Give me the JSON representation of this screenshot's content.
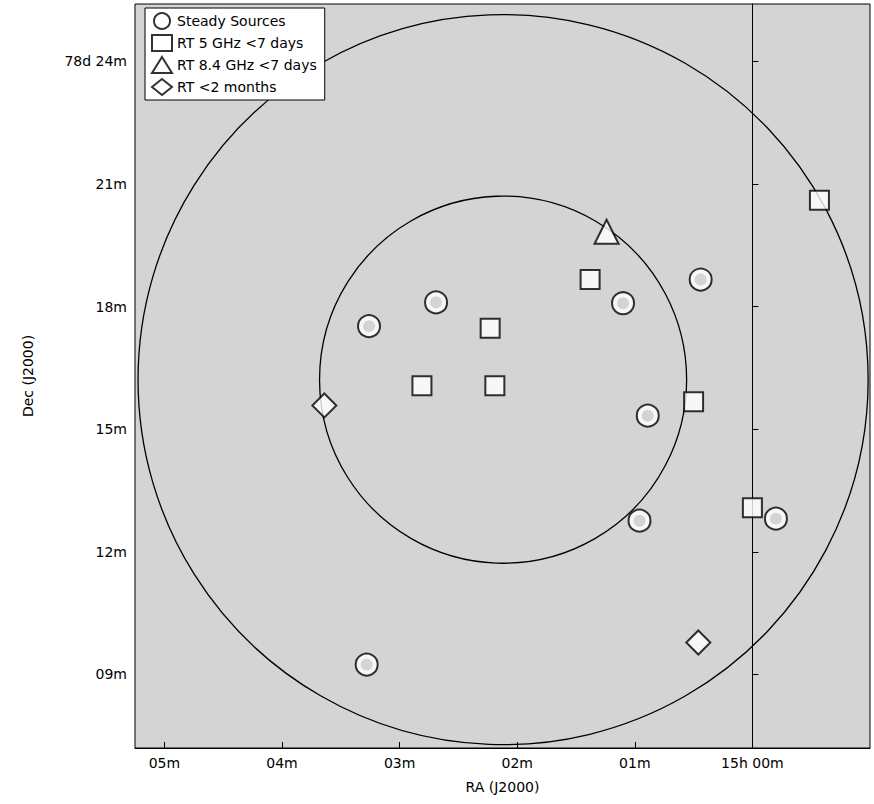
{
  "chart_data": {
    "type": "scatter",
    "x_label": "RA (J2000)",
    "y_label": "Dec (J2000)",
    "xlim": [
      5.25,
      -1.0
    ],
    "ylim": [
      7.2,
      25.4
    ],
    "xticks": [
      {
        "value": 5,
        "label": "05m"
      },
      {
        "value": 4,
        "label": "04m"
      },
      {
        "value": 3,
        "label": "03m"
      },
      {
        "value": 2,
        "label": "02m"
      },
      {
        "value": 1,
        "label": "01m"
      },
      {
        "value": 0,
        "label": "15h 00m"
      }
    ],
    "yticks": [
      {
        "value": 9,
        "label": "09m"
      },
      {
        "value": 12,
        "label": "12m"
      },
      {
        "value": 15,
        "label": "15m"
      },
      {
        "value": 18,
        "label": "18m"
      },
      {
        "value": 21,
        "label": "21m"
      },
      {
        "value": 24,
        "label": "78d 24m"
      }
    ],
    "grid": false,
    "legend": "upper left",
    "series": [
      {
        "name": "Steady Sources",
        "marker": "circle",
        "color": "#000000",
        "x": [
          3.26,
          2.69,
          1.1,
          0.44,
          0.89,
          0.96,
          -0.2,
          3.28
        ],
        "y": [
          17.52,
          18.1,
          18.08,
          18.66,
          15.33,
          12.76,
          12.81,
          9.24
        ]
      },
      {
        "name": "RT 5 GHz <7 days",
        "marker": "square",
        "color": "#000000",
        "x": [
          2.23,
          2.81,
          2.19,
          1.38,
          0.5,
          0.0,
          -0.57
        ],
        "y": [
          17.47,
          16.06,
          16.06,
          18.66,
          15.67,
          13.08,
          20.6
        ]
      },
      {
        "name": "RT 8.4 GHz <7 days",
        "marker": "triangle",
        "color": "#000000",
        "x": [
          1.24
        ],
        "y": [
          19.83
        ]
      },
      {
        "name": "RT <2 months",
        "marker": "diamond",
        "color": "#000000",
        "x": [
          3.64,
          0.46
        ],
        "y": [
          15.58,
          9.78
        ]
      }
    ],
    "beam_circles": {
      "ra": [
        2.12,
        2.12
      ],
      "dec": [
        16.21,
        16.21
      ],
      "radius": [
        4.49,
        8.93
      ]
    }
  }
}
